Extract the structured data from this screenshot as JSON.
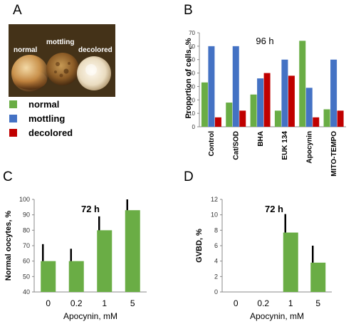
{
  "panels": {
    "A": "A",
    "B": "B",
    "C": "C",
    "D": "D"
  },
  "photo_labels": {
    "normal": "normal",
    "mottling": "mottling",
    "decolored": "decolored"
  },
  "legend": [
    {
      "label": "normal",
      "color": "#6aad45"
    },
    {
      "label": "mottling",
      "color": "#4472c4"
    },
    {
      "label": "decolored",
      "color": "#c00000"
    }
  ],
  "chart_data": [
    {
      "id": "B",
      "type": "bar",
      "annotation": "96 h",
      "ylabel": "Proportion of cells, %",
      "ylim": [
        0,
        70
      ],
      "yticks": [
        "0",
        "10",
        "20",
        "30",
        "40",
        "50",
        "60",
        "70"
      ],
      "categories": [
        "Control",
        "Cat/SOD",
        "BHA",
        "EUK 134",
        "Apocynin",
        "MITO-TEMPO"
      ],
      "series": [
        {
          "name": "normal",
          "color": "#6aad45",
          "values": [
            33,
            18,
            24,
            12,
            64,
            13
          ]
        },
        {
          "name": "mottling",
          "color": "#4472c4",
          "values": [
            60,
            60,
            36,
            50,
            29,
            50
          ]
        },
        {
          "name": "decolored",
          "color": "#c00000",
          "values": [
            7,
            12,
            40,
            38,
            7,
            12
          ]
        }
      ]
    },
    {
      "id": "C",
      "type": "bar",
      "annotation": "72 h",
      "ylabel": "Normal oocytes, %",
      "xlabel": "Apocynin, mM",
      "ylim": [
        40,
        100
      ],
      "yticks": [
        "40",
        "50",
        "60",
        "70",
        "80",
        "90",
        "100"
      ],
      "categories": [
        "0",
        "0.2",
        "1",
        "5"
      ],
      "values": [
        60,
        60,
        80,
        93
      ],
      "errors": [
        11,
        8,
        9,
        7
      ],
      "color": "#6aad45"
    },
    {
      "id": "D",
      "type": "bar",
      "annotation": "72 h",
      "ylabel": "GVBD, %",
      "xlabel": "Apocynin, mM",
      "ylim": [
        0,
        12
      ],
      "yticks": [
        "0",
        "2",
        "4",
        "6",
        "8",
        "10",
        "12"
      ],
      "categories": [
        "0",
        "0.2",
        "1",
        "5"
      ],
      "values": [
        0,
        0,
        7.7,
        3.8
      ],
      "errors": [
        0,
        0,
        2.4,
        2.2
      ],
      "color": "#6aad45"
    }
  ]
}
